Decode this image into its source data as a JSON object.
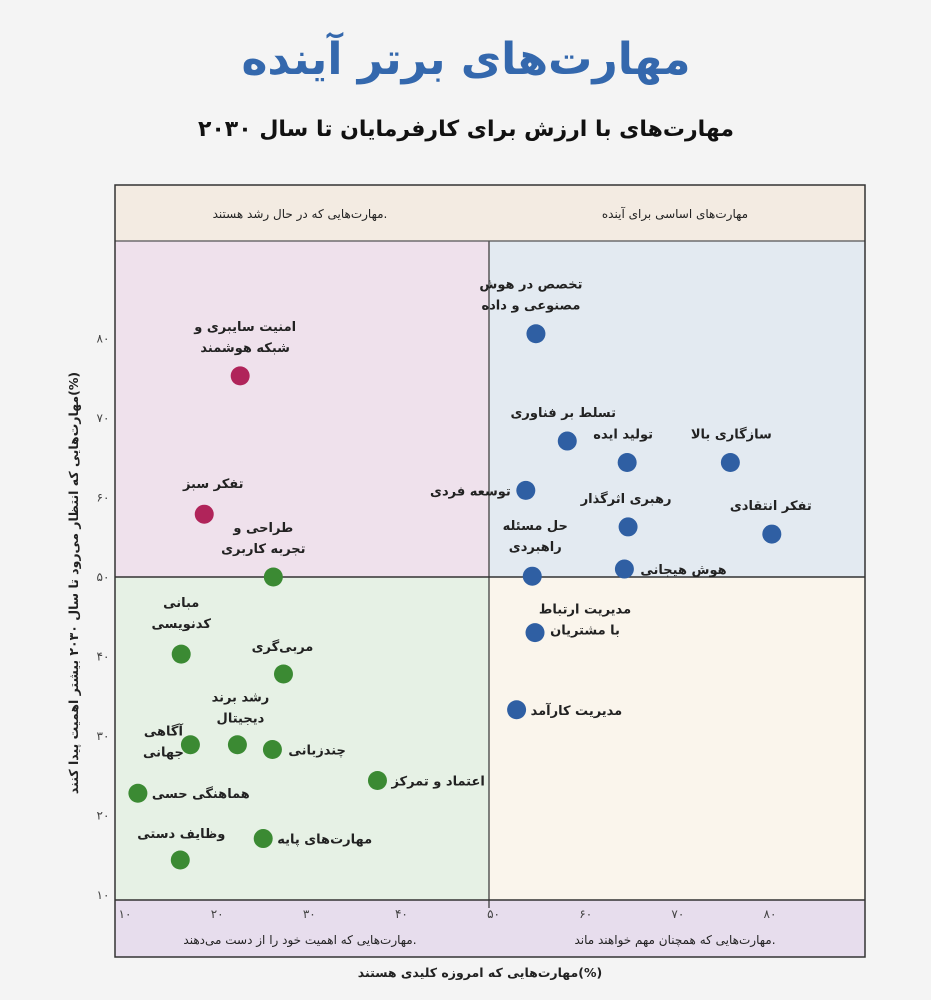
{
  "chart_data": {
    "type": "scatter",
    "title": "مهارت‌های برتر آینده",
    "subtitle": "مهارت‌های با ارزش برای کارفرمایان تا سال ۲۰۳۰",
    "xlabel": "مهارت‌هایی که امروزه کلیدی هستند(%)",
    "ylabel": "مهارت‌هایی که انتظار می‌رود تا سال ۲۰۳۰ بیشتر اهمیت پیدا کنند(%)",
    "xlim": [
      10,
      85
    ],
    "ylim": [
      10,
      93
    ],
    "x_ticks": [
      10,
      20,
      30,
      40,
      50,
      60,
      70,
      80
    ],
    "x_tick_labels": [
      "۱۰",
      "۲۰",
      "۳۰",
      "۴۰",
      "۵۰",
      "۶۰",
      "۷۰",
      "۸۰"
    ],
    "y_ticks": [
      10,
      20,
      30,
      40,
      50,
      60,
      70,
      80
    ],
    "y_tick_labels": [
      "۱۰",
      "۲۰",
      "۳۰",
      "۴۰",
      "۵۰",
      "۶۰",
      "۷۰",
      "۸۰"
    ],
    "quadrant_split": {
      "x": 50,
      "y": 50
    },
    "quadrant_labels": {
      "top_left": "مهارت‌هایی که در حال رشد هستند.",
      "top_right": "مهارت‌های اساسی برای آینده",
      "bottom_left": "مهارت‌هایی که اهمیت خود را از دست می‌دهند.",
      "bottom_right": "مهارت‌هایی که همچنان مهم خواهند ماند."
    },
    "colors": {
      "core": "#2f5fa3",
      "growing": "#b0245a",
      "declining": "#3b8a33",
      "q_top_left": "#efe1ec",
      "q_top_right": "#e3eaf1",
      "q_bottom_left": "#e6f1e5",
      "q_bottom_right": "#faf5ec",
      "band_top": "#f3ebe2",
      "band_bottom": "#e7dded"
    },
    "series": [
      {
        "name": "تخصص در هوش مصنوعی و داده",
        "lines": [
          "تخصص در هوش",
          "مصنوعی و داده"
        ],
        "x": 54.6,
        "y": 80.6,
        "group": "core"
      },
      {
        "name": "امنیت سایبری و شبکه هوشمند",
        "lines": [
          "امنیت سایبری و",
          "شبکه هوشمند"
        ],
        "x": 22.5,
        "y": 75.3,
        "group": "growing"
      },
      {
        "name": "تفکر سبز",
        "lines": [
          "تفکر سبز"
        ],
        "x": 18.6,
        "y": 57.9,
        "group": "growing"
      },
      {
        "name": "طراحی و تجربه کاربری",
        "lines": [
          "طراحی و",
          "تجربه کاربری"
        ],
        "x": 26.1,
        "y": 50.0,
        "group": "declining"
      },
      {
        "name": "تسلط بر فناوری",
        "lines": [
          "تسلط بر فناوری"
        ],
        "x": 58.0,
        "y": 67.1,
        "group": "core"
      },
      {
        "name": "تولید ایده",
        "lines": [
          "تولید ایده"
        ],
        "x": 64.5,
        "y": 64.4,
        "group": "core"
      },
      {
        "name": "سازگاری بالا",
        "lines": [
          "سازگاری بالا"
        ],
        "x": 75.7,
        "y": 64.4,
        "group": "core"
      },
      {
        "name": "توسعه فردی",
        "lines": [
          "توسعه فردی"
        ],
        "x": 53.5,
        "y": 60.9,
        "group": "core"
      },
      {
        "name": "رهبری اثرگذار",
        "lines": [
          "رهبری اثرگذار"
        ],
        "x": 64.6,
        "y": 56.3,
        "group": "core"
      },
      {
        "name": "تفکر انتقادی",
        "lines": [
          "تفکر انتقادی"
        ],
        "x": 80.2,
        "y": 55.4,
        "group": "core"
      },
      {
        "name": "حل مسئله راهبردی",
        "lines": [
          "حل مسئله",
          "راهبردی"
        ],
        "x": 54.2,
        "y": 50.1,
        "group": "core"
      },
      {
        "name": "هوش هیجانی",
        "lines": [
          "هوش هیجانی"
        ],
        "x": 64.2,
        "y": 51.0,
        "group": "core"
      },
      {
        "name": "مدیریت ارتباط با مشتریان",
        "lines": [
          "مدیریت ارتباط",
          "با مشتریان"
        ],
        "x": 54.5,
        "y": 43.0,
        "group": "core"
      },
      {
        "name": "مدیریت کارآمد",
        "lines": [
          "مدیریت کارآمد"
        ],
        "x": 52.5,
        "y": 33.3,
        "group": "core"
      },
      {
        "name": "مبانی کدنویسی",
        "lines": [
          "مبانی",
          "کدنویسی"
        ],
        "x": 16.1,
        "y": 40.3,
        "group": "declining"
      },
      {
        "name": "مربی‌گری",
        "lines": [
          "مربی‌گری"
        ],
        "x": 27.2,
        "y": 37.8,
        "group": "declining"
      },
      {
        "name": "رشد برند دیجیتال",
        "lines": [
          "رشد برند",
          "دیجیتال"
        ],
        "x": 22.2,
        "y": 28.9,
        "group": "declining"
      },
      {
        "name": "آگاهی جهانی",
        "lines": [
          "آگاهی",
          "جهانی"
        ],
        "x": 17.1,
        "y": 28.9,
        "group": "declining"
      },
      {
        "name": "چندزبانی",
        "lines": [
          "چندزبانی"
        ],
        "x": 26.0,
        "y": 28.3,
        "group": "declining"
      },
      {
        "name": "اعتماد و تمرکز",
        "lines": [
          "اعتماد و تمرکز"
        ],
        "x": 37.4,
        "y": 24.4,
        "group": "declining"
      },
      {
        "name": "هماهنگی حسی",
        "lines": [
          "هماهنگی حسی"
        ],
        "x": 11.4,
        "y": 22.8,
        "group": "declining"
      },
      {
        "name": "مهارت‌های پایه",
        "lines": [
          "مهارت‌های پایه"
        ],
        "x": 25.0,
        "y": 17.1,
        "group": "declining"
      },
      {
        "name": "وظایف دستی",
        "lines": [
          "وظایف دستی"
        ],
        "x": 16.0,
        "y": 14.4,
        "group": "declining"
      }
    ]
  }
}
